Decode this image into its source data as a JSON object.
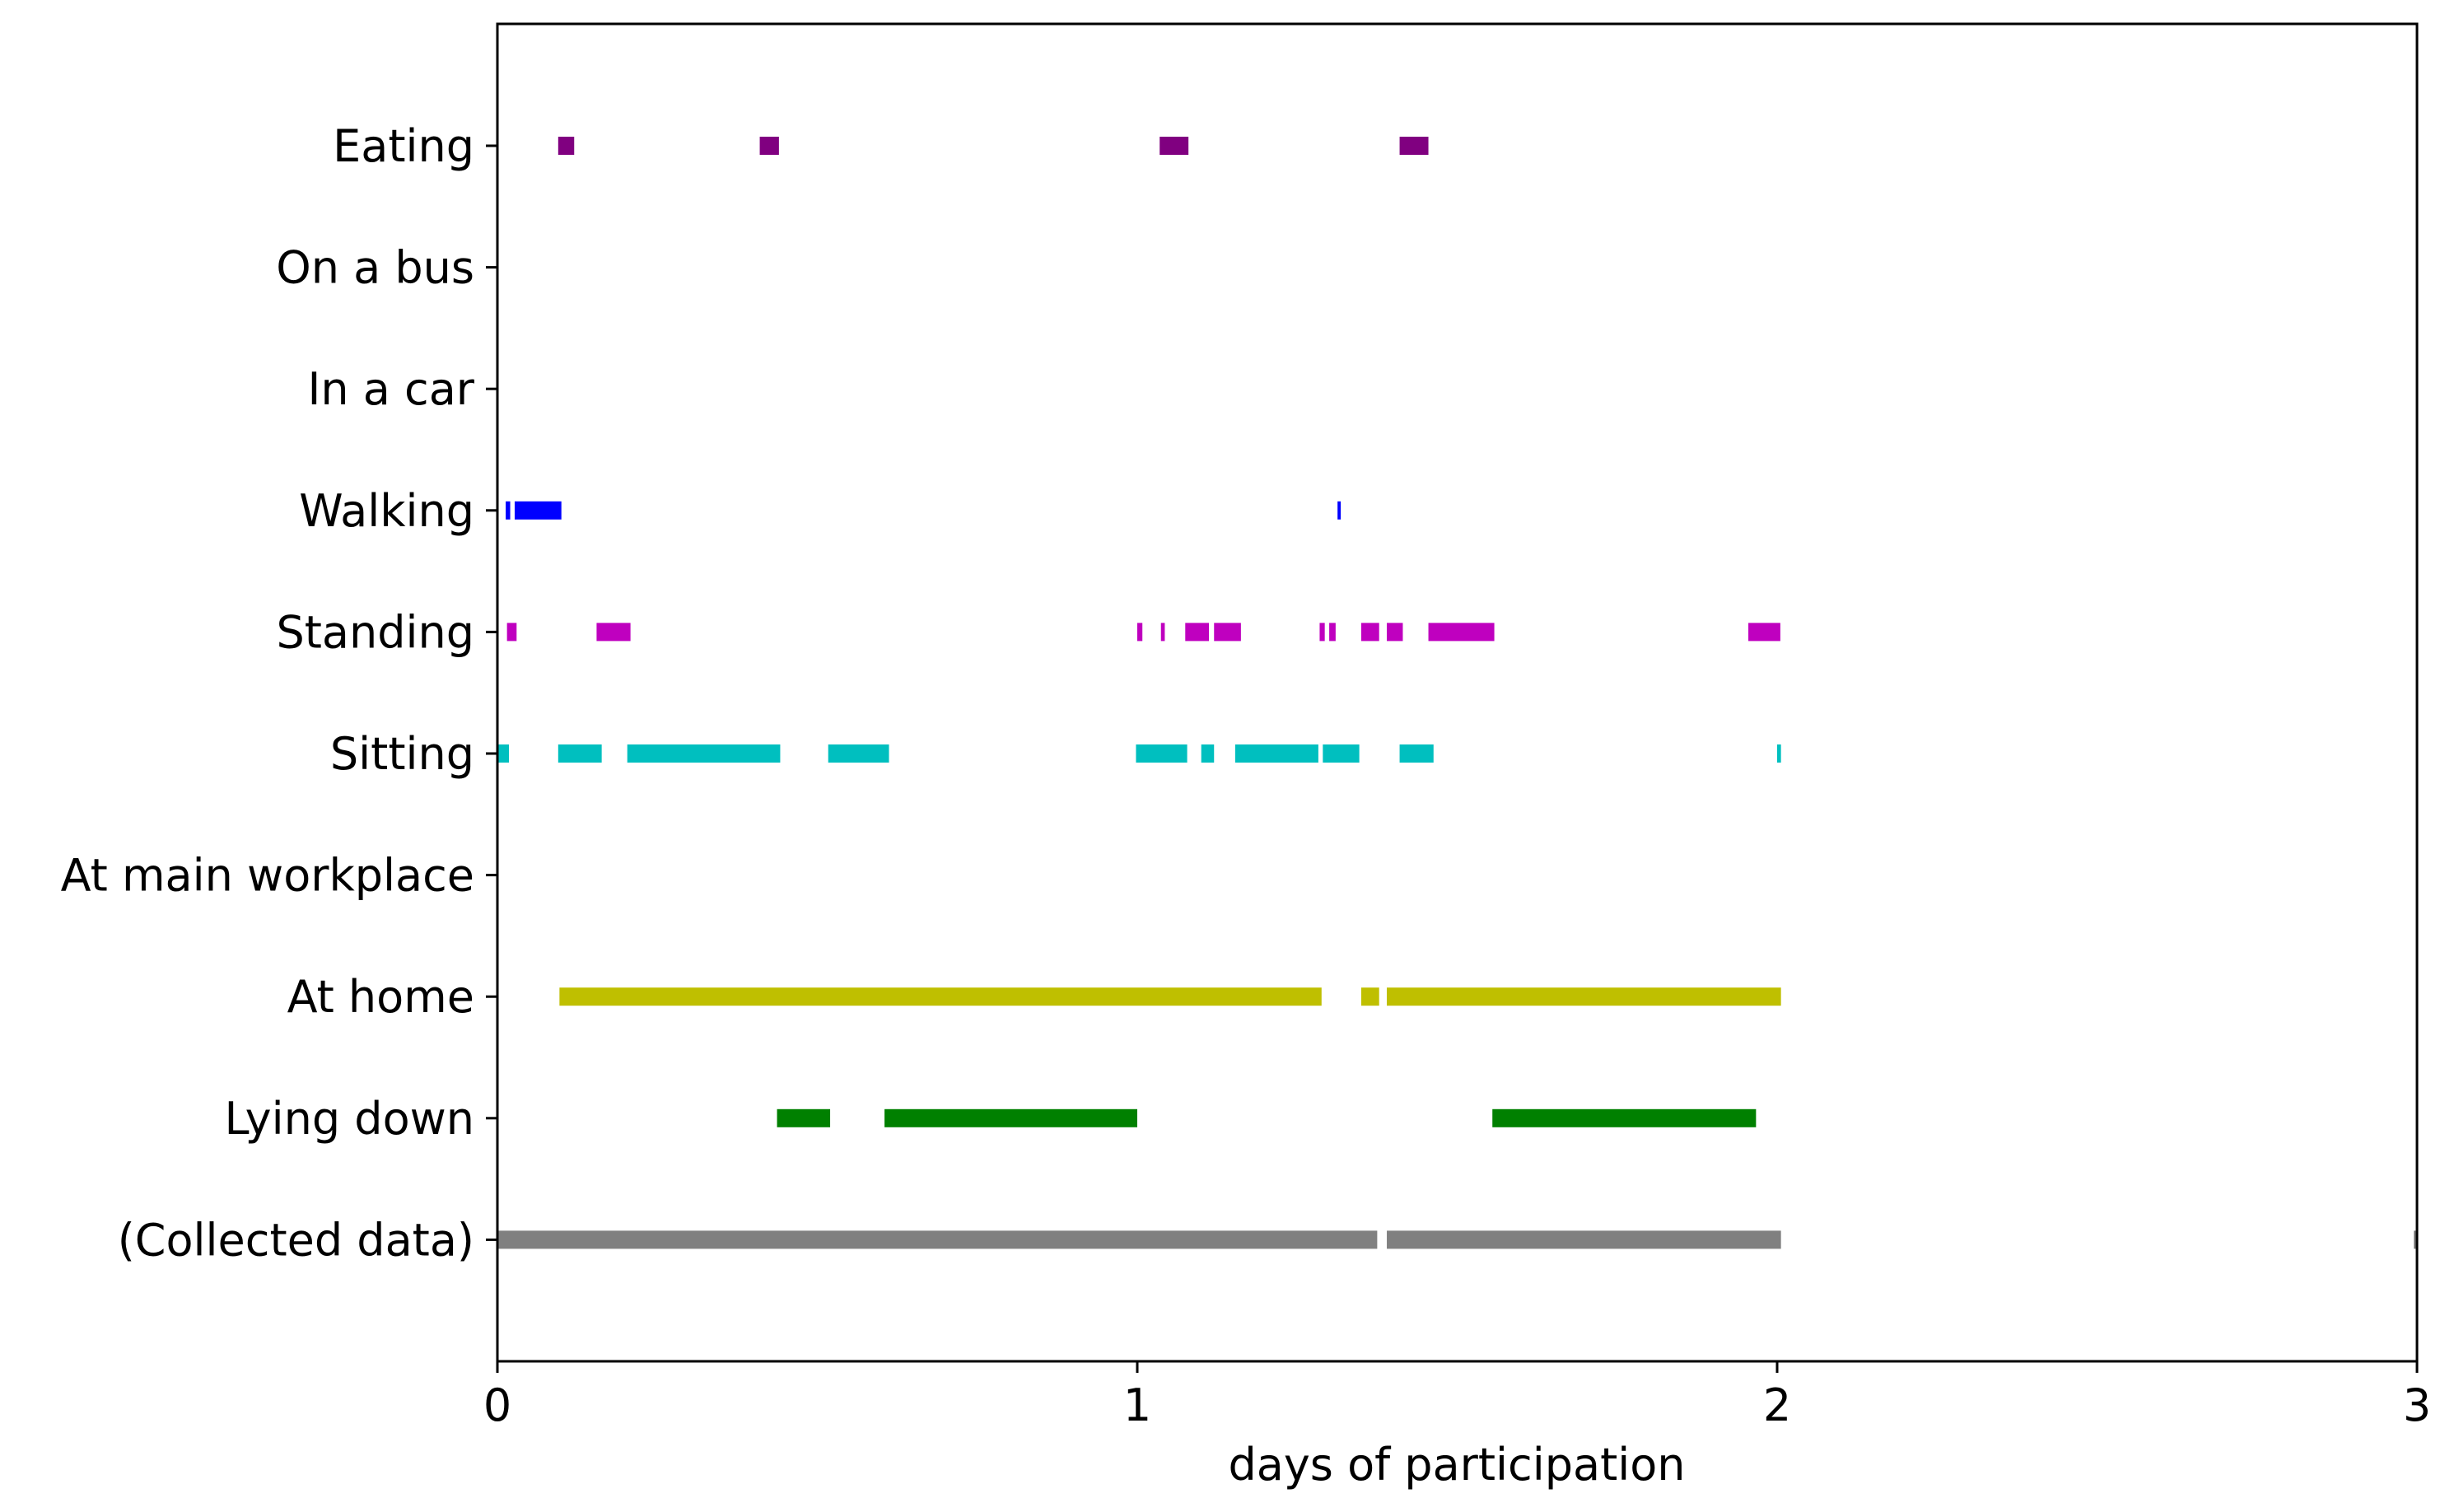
{
  "chart_data": {
    "type": "broken_barh",
    "title": "",
    "xlabel": "days of participation",
    "ylabel": "",
    "xlim": [
      0,
      3
    ],
    "xticks": [
      "0",
      "1",
      "2",
      "3"
    ],
    "grid": false,
    "categories": [
      "Eating",
      "On a bus",
      "In a car",
      "Walking",
      "Standing",
      "Sitting",
      "At main workplace",
      "At home",
      "Lying down",
      "(Collected data)"
    ],
    "series": [
      {
        "name": "Eating",
        "color": "#800080",
        "intervals": [
          [
            0.095,
            0.12
          ],
          [
            0.41,
            0.44
          ],
          [
            1.035,
            1.08
          ],
          [
            1.41,
            1.455
          ]
        ]
      },
      {
        "name": "On a bus",
        "color": "#000000",
        "intervals": []
      },
      {
        "name": "In a car",
        "color": "#000000",
        "intervals": []
      },
      {
        "name": "Walking",
        "color": "#0000ff",
        "intervals": [
          [
            0.013,
            0.02
          ],
          [
            0.027,
            0.1
          ],
          [
            1.313,
            1.318
          ]
        ]
      },
      {
        "name": "Standing",
        "color": "#bf00bf",
        "intervals": [
          [
            0.015,
            0.03
          ],
          [
            0.155,
            0.208
          ],
          [
            1.0,
            1.008
          ],
          [
            1.037,
            1.043
          ],
          [
            1.075,
            1.112
          ],
          [
            1.12,
            1.162
          ],
          [
            1.285,
            1.293
          ],
          [
            1.3,
            1.31
          ],
          [
            1.35,
            1.378
          ],
          [
            1.39,
            1.415
          ],
          [
            1.455,
            1.558
          ],
          [
            1.955,
            2.005
          ]
        ]
      },
      {
        "name": "Sitting",
        "color": "#00bfbf",
        "intervals": [
          [
            0.0,
            0.018
          ],
          [
            0.095,
            0.163
          ],
          [
            0.203,
            0.442
          ],
          [
            0.517,
            0.612
          ],
          [
            0.998,
            1.078
          ],
          [
            1.1,
            1.12
          ],
          [
            1.153,
            1.283
          ],
          [
            1.29,
            1.347
          ],
          [
            1.41,
            1.463
          ],
          [
            2.0,
            2.006
          ]
        ]
      },
      {
        "name": "At main workplace",
        "color": "#000000",
        "intervals": []
      },
      {
        "name": "At home",
        "color": "#bfbf00",
        "intervals": [
          [
            0.097,
            1.288
          ],
          [
            1.35,
            1.378
          ],
          [
            1.39,
            2.006
          ]
        ]
      },
      {
        "name": "Lying down",
        "color": "#008000",
        "intervals": [
          [
            0.437,
            0.52
          ],
          [
            0.605,
            1.0
          ],
          [
            1.555,
            1.967
          ]
        ]
      },
      {
        "name": "(Collected data)",
        "color": "#808080",
        "intervals": [
          [
            0.0,
            1.375
          ],
          [
            1.39,
            2.006
          ],
          [
            2.995,
            3.0
          ]
        ]
      }
    ]
  }
}
